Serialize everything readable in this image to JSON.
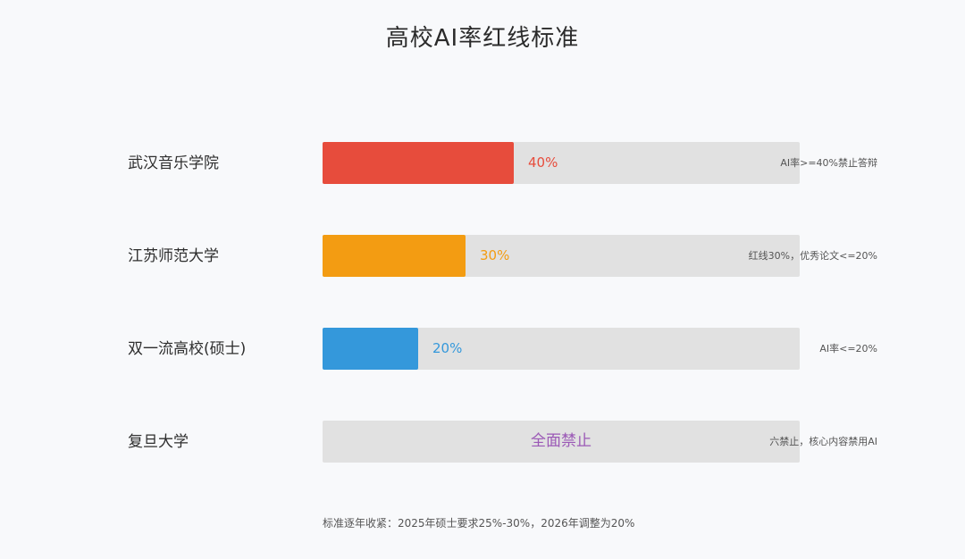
{
  "title": "高校AI率红线标准",
  "footer": "标准逐年收紧：2025年硕士要求25%-30%，2026年调整为20%",
  "chart_data": {
    "type": "bar",
    "orientation": "horizontal",
    "title": "高校AI率红线标准",
    "xlim": [
      0,
      100
    ],
    "categories": [
      "武汉音乐学院",
      "江苏师范大学",
      "双一流高校(硕士)",
      "复旦大学"
    ],
    "values": [
      40,
      30,
      20,
      null
    ],
    "value_labels": [
      "40%",
      "30%",
      "20%",
      "全面禁止"
    ],
    "notes": [
      "AI率>=40%禁止答辩",
      "红线30%，优秀论文<=20%",
      "AI率<=20%",
      "六禁止，核心内容禁用AI"
    ],
    "colors": [
      "#e74c3c",
      "#f39c12",
      "#3498db",
      "#9b59b6"
    ],
    "track_color": "#e1e1e1",
    "grid": false,
    "legend": "none"
  }
}
